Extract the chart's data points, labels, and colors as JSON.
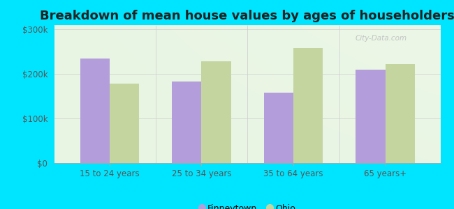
{
  "title": "Breakdown of mean house values by ages of householders",
  "categories": [
    "15 to 24 years",
    "25 to 34 years",
    "35 to 64 years",
    "65 years+"
  ],
  "finneytown_values": [
    235000,
    183000,
    158000,
    210000
  ],
  "ohio_values": [
    178000,
    228000,
    258000,
    222000
  ],
  "finneytown_color": "#b39ddb",
  "ohio_color": "#c5d5a0",
  "background_outer": "#00e5ff",
  "background_inner": "#e8f5e2",
  "ylim": [
    0,
    310000
  ],
  "yticks": [
    0,
    100000,
    200000,
    300000
  ],
  "ytick_labels": [
    "$0",
    "$100k",
    "$200k",
    "$300k"
  ],
  "legend_finneytown": "Finneytown",
  "legend_ohio": "Ohio",
  "title_fontsize": 13,
  "tick_fontsize": 8.5,
  "legend_fontsize": 9,
  "bar_width": 0.32,
  "watermark": "City-Data.com"
}
